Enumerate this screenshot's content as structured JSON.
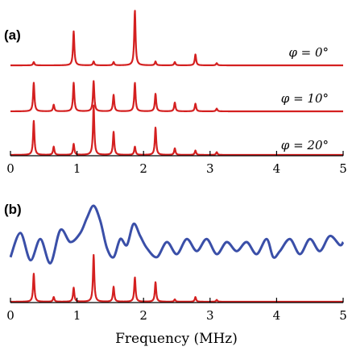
{
  "chart_data": [
    {
      "panel": "(a)",
      "type": "line",
      "xlim": [
        0,
        5
      ],
      "xticks": [
        "0",
        "1",
        "2",
        "3",
        "4",
        "5"
      ],
      "xlabel": "",
      "color": "#d42020",
      "series": [
        {
          "name": "φ = 0°",
          "peaks": [
            {
              "x": 0.35,
              "y": 0.06
            },
            {
              "x": 0.95,
              "y": 0.62
            },
            {
              "x": 1.25,
              "y": 0.07
            },
            {
              "x": 1.55,
              "y": 0.06
            },
            {
              "x": 1.87,
              "y": 1.0
            },
            {
              "x": 2.18,
              "y": 0.07
            },
            {
              "x": 2.47,
              "y": 0.06
            },
            {
              "x": 2.78,
              "y": 0.2
            },
            {
              "x": 3.1,
              "y": 0.04
            }
          ]
        },
        {
          "name": "φ = 10°",
          "peaks": [
            {
              "x": 0.35,
              "y": 0.52
            },
            {
              "x": 0.65,
              "y": 0.12
            },
            {
              "x": 0.95,
              "y": 0.52
            },
            {
              "x": 1.25,
              "y": 0.55
            },
            {
              "x": 1.55,
              "y": 0.3
            },
            {
              "x": 1.87,
              "y": 0.52
            },
            {
              "x": 2.18,
              "y": 0.32
            },
            {
              "x": 2.47,
              "y": 0.16
            },
            {
              "x": 2.78,
              "y": 0.14
            },
            {
              "x": 3.1,
              "y": 0.05
            }
          ]
        },
        {
          "name": "φ = 20°",
          "peaks": [
            {
              "x": 0.35,
              "y": 0.62
            },
            {
              "x": 0.65,
              "y": 0.15
            },
            {
              "x": 0.95,
              "y": 0.2
            },
            {
              "x": 1.25,
              "y": 0.9
            },
            {
              "x": 1.55,
              "y": 0.42
            },
            {
              "x": 1.87,
              "y": 0.15
            },
            {
              "x": 2.18,
              "y": 0.5
            },
            {
              "x": 2.47,
              "y": 0.12
            },
            {
              "x": 2.78,
              "y": 0.08
            },
            {
              "x": 3.1,
              "y": 0.05
            }
          ]
        }
      ]
    },
    {
      "panel": "(b)",
      "type": "line",
      "xlim": [
        0,
        5
      ],
      "xticks": [
        "0",
        "1",
        "2",
        "3",
        "4",
        "5"
      ],
      "xlabel": "Frequency (MHz)",
      "series": [
        {
          "color": "#3a4fa8",
          "x": [
            0.0,
            0.15,
            0.3,
            0.45,
            0.6,
            0.75,
            0.9,
            1.05,
            1.15,
            1.25,
            1.35,
            1.45,
            1.55,
            1.65,
            1.75,
            1.85,
            1.95,
            2.05,
            2.2,
            2.35,
            2.5,
            2.65,
            2.8,
            2.95,
            3.1,
            3.25,
            3.4,
            3.55,
            3.7,
            3.85,
            3.95,
            4.05,
            4.2,
            4.35,
            4.5,
            4.65,
            4.8,
            4.95,
            5.0
          ],
          "y": [
            0.15,
            0.55,
            0.1,
            0.45,
            0.05,
            0.6,
            0.4,
            0.55,
            0.8,
            1.0,
            0.75,
            0.3,
            0.15,
            0.45,
            0.35,
            0.7,
            0.5,
            0.3,
            0.15,
            0.4,
            0.2,
            0.45,
            0.25,
            0.45,
            0.2,
            0.4,
            0.25,
            0.4,
            0.2,
            0.45,
            0.15,
            0.25,
            0.45,
            0.2,
            0.45,
            0.25,
            0.5,
            0.35,
            0.4
          ]
        },
        {
          "color": "#d42020",
          "peaks": [
            {
              "x": 0.35,
              "y": 0.6
            },
            {
              "x": 0.65,
              "y": 0.1
            },
            {
              "x": 0.95,
              "y": 0.3
            },
            {
              "x": 1.25,
              "y": 1.0
            },
            {
              "x": 1.55,
              "y": 0.32
            },
            {
              "x": 1.87,
              "y": 0.52
            },
            {
              "x": 2.18,
              "y": 0.42
            },
            {
              "x": 2.47,
              "y": 0.05
            },
            {
              "x": 2.78,
              "y": 0.1
            },
            {
              "x": 3.1,
              "y": 0.04
            }
          ]
        }
      ]
    }
  ]
}
